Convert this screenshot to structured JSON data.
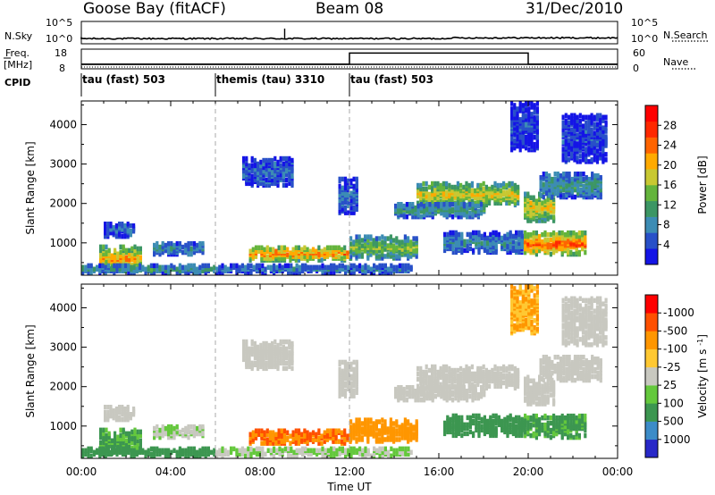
{
  "header": {
    "station": "Goose Bay (fitACF)",
    "beam": "Beam 08",
    "date": "31/Dec/2010"
  },
  "strips": {
    "nsky_label": "N.Sky",
    "nsearch_label": "N.Search",
    "nsky_ticks": [
      "10^5",
      "10^0"
    ],
    "nsearch_ticks": [
      "10^5",
      "10^0"
    ],
    "freq_label_top": "Freq.",
    "freq_label_bottom": "[MHz]",
    "freq_ticks": [
      "18",
      "8"
    ],
    "nave_label": "Nave",
    "nave_ticks": [
      "60",
      "0"
    ],
    "cpid_label": "CPID",
    "modes": [
      {
        "name": "tau (fast) 503",
        "start_h": 0
      },
      {
        "name": "themis (tau) 3310",
        "start_h": 6
      },
      {
        "name": "tau (fast) 503",
        "start_h": 12
      }
    ]
  },
  "panels": {
    "ylabel": "Slant Range [km]",
    "xlabel": "Time UT",
    "x_ticks": [
      "00:00",
      "04:00",
      "08:00",
      "12:00",
      "16:00",
      "20:00",
      "00:00"
    ],
    "y_ticks": [
      "1000",
      "2000",
      "3000",
      "4000"
    ],
    "power_colorbar": {
      "label": "Power [dB]",
      "ticks": [
        "4",
        "8",
        "12",
        "16",
        "20",
        "24",
        "28"
      ],
      "colors": [
        "#1414e6",
        "#2850c8",
        "#3c8cb4",
        "#3c9664",
        "#64b43c",
        "#c8c832",
        "#ffaa00",
        "#ff6400",
        "#ff2800",
        "#ff0000"
      ]
    },
    "velocity_colorbar": {
      "label": "Velocity [m s",
      "label_sup": "-1",
      "label_end": "]",
      "ticks": [
        "1000",
        "500",
        "100",
        "25",
        "-25",
        "-100",
        "-500",
        "-1000"
      ],
      "colors": [
        "#2828c8",
        "#3c8cc8",
        "#3c9650",
        "#64c83c",
        "#c8c8c0",
        "#ffc832",
        "#ff9600",
        "#ff5000",
        "#ff0000"
      ]
    }
  },
  "chart_data": {
    "type": "heatmap",
    "x_range_hours": [
      0,
      24
    ],
    "y_range_km": [
      180,
      4600
    ],
    "mode_changes_hours": [
      6,
      12
    ],
    "nsky_level": 1.6,
    "nsearch_level": 1.4,
    "freq_mhz": 10,
    "nave": [
      {
        "start_h": 0,
        "end_h": 12,
        "value": 14
      },
      {
        "start_h": 12,
        "end_h": 20,
        "value": 48
      },
      {
        "start_h": 20,
        "end_h": 24,
        "value": 14
      }
    ],
    "echo_regions": [
      {
        "t0": 0.8,
        "t1": 2.7,
        "r0": 250,
        "r1": 850,
        "power_db": 22,
        "velocity": 60
      },
      {
        "t0": 1.0,
        "t1": 2.3,
        "r0": 1100,
        "r1": 1450,
        "power_db": 8,
        "velocity": 0
      },
      {
        "t0": 0.0,
        "t1": 6.0,
        "r0": 180,
        "r1": 380,
        "power_db": 12,
        "velocity": 80
      },
      {
        "t0": 6.0,
        "t1": 14.8,
        "r0": 180,
        "r1": 380,
        "power_db": 9,
        "velocity": 20
      },
      {
        "t0": 3.2,
        "t1": 5.5,
        "r0": 650,
        "r1": 950,
        "power_db": 10,
        "velocity": 15
      },
      {
        "t0": 7.5,
        "t1": 12.0,
        "r0": 500,
        "r1": 850,
        "power_db": 24,
        "velocity": -200
      },
      {
        "t0": 12.0,
        "t1": 15.0,
        "r0": 550,
        "r1": 1100,
        "power_db": 16,
        "velocity": -150
      },
      {
        "t0": 7.2,
        "t1": 9.5,
        "r0": 2400,
        "r1": 3100,
        "power_db": 8,
        "velocity": 0
      },
      {
        "t0": 15.0,
        "t1": 19.5,
        "r0": 1900,
        "r1": 2450,
        "power_db": 20,
        "velocity": 0
      },
      {
        "t0": 14.0,
        "t1": 18.0,
        "r0": 1600,
        "r1": 1950,
        "power_db": 12,
        "velocity": 0
      },
      {
        "t0": 16.2,
        "t1": 19.8,
        "r0": 700,
        "r1": 1200,
        "power_db": 10,
        "velocity": 90
      },
      {
        "t0": 19.8,
        "t1": 22.5,
        "r0": 650,
        "r1": 1200,
        "power_db": 26,
        "velocity": 70
      },
      {
        "t0": 19.8,
        "t1": 21.2,
        "r0": 1500,
        "r1": 2200,
        "power_db": 20,
        "velocity": 0
      },
      {
        "t0": 20.5,
        "t1": 23.2,
        "r0": 2100,
        "r1": 2700,
        "power_db": 12,
        "velocity": 0
      },
      {
        "t0": 21.5,
        "t1": 23.5,
        "r0": 3000,
        "r1": 4200,
        "power_db": 6,
        "velocity": 0
      },
      {
        "t0": 11.5,
        "t1": 12.3,
        "r0": 1700,
        "r1": 2600,
        "power_db": 8,
        "velocity": 0
      },
      {
        "t0": 19.2,
        "t1": 20.4,
        "r0": 3300,
        "r1": 4500,
        "power_db": 6,
        "velocity": -60
      }
    ]
  }
}
